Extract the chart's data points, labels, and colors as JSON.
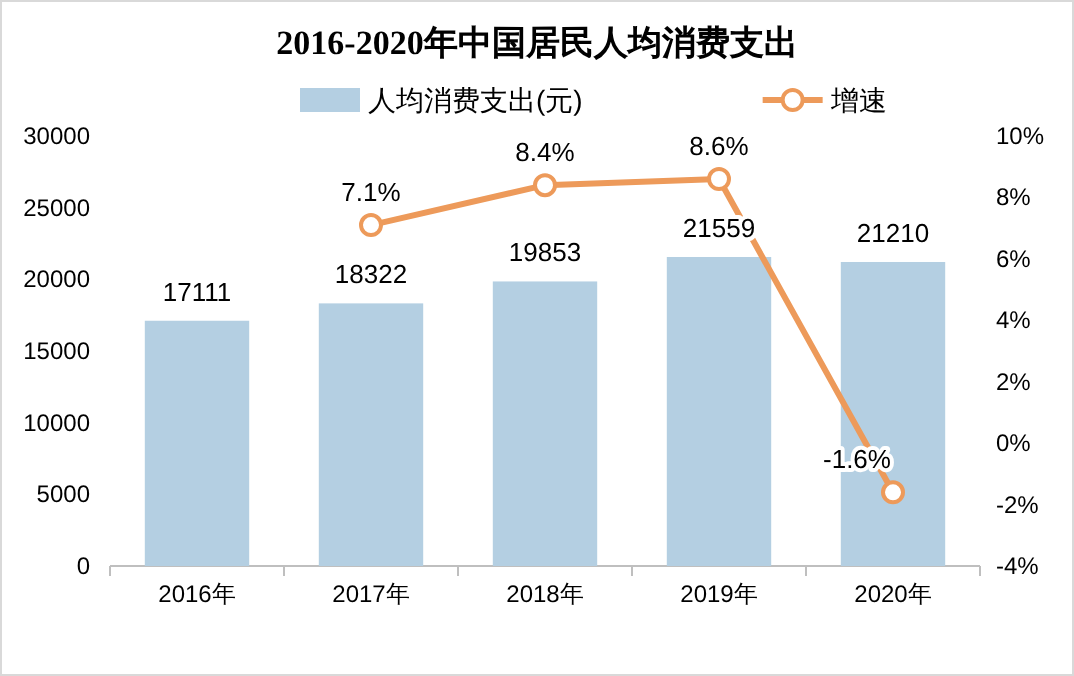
{
  "chart_data": {
    "type": "bar",
    "title": "2016-2020年中国居民人均消费支出",
    "categories": [
      "2016年",
      "2017年",
      "2018年",
      "2019年",
      "2020年"
    ],
    "series": [
      {
        "name": "人均消费支出(元)",
        "color": "#b4cfe2",
        "values": [
          17111,
          18322,
          19853,
          21559,
          21210
        ],
        "value_labels": [
          "17111",
          "18322",
          "19853",
          "21559",
          "21210"
        ]
      },
      {
        "name": "增速",
        "type": "line",
        "axis": "y2",
        "color": "#ed9a5a",
        "marker": "circle",
        "values": [
          null,
          7.1,
          8.4,
          8.6,
          -1.6
        ],
        "value_labels": [
          null,
          "7.1%",
          "8.4%",
          "8.6%",
          "-1.6%"
        ]
      }
    ],
    "ylim": [
      0,
      30000
    ],
    "yticks": [
      0,
      5000,
      10000,
      15000,
      20000,
      25000,
      30000
    ],
    "y2lim": [
      -4,
      10
    ],
    "y2ticks": [
      {
        "value": -4,
        "label": "-4%"
      },
      {
        "value": -2,
        "label": "-2%"
      },
      {
        "value": 0,
        "label": "0%"
      },
      {
        "value": 2,
        "label": "2%"
      },
      {
        "value": 4,
        "label": "4%"
      },
      {
        "value": 6,
        "label": "6%"
      },
      {
        "value": 8,
        "label": "8%"
      },
      {
        "value": 10,
        "label": "10%"
      }
    ],
    "legend": "top"
  }
}
